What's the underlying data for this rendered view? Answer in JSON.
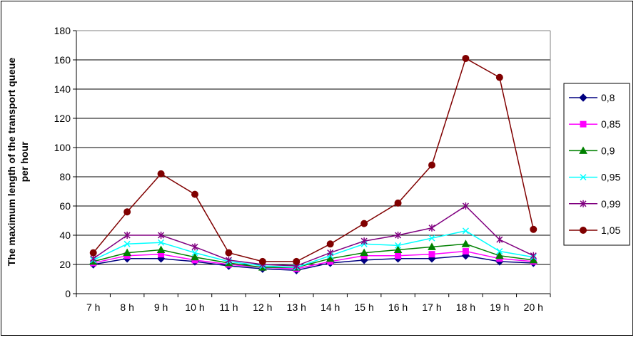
{
  "chart_data": {
    "type": "line",
    "title": "",
    "xlabel": "",
    "ylabel": "The maximum length of the transport queue per hour",
    "ylabel_lines": [
      "The maximum length of the transport queue",
      "per hour"
    ],
    "ylim": [
      0,
      180
    ],
    "yticks": [
      0,
      20,
      40,
      60,
      80,
      100,
      120,
      140,
      160,
      180
    ],
    "grid": "horizontal",
    "legend_position": "right",
    "categories": [
      "7 h",
      "8 h",
      "9 h",
      "10 h",
      "11 h",
      "12 h",
      "13 h",
      "14 h",
      "15 h",
      "16 h",
      "17 h",
      "18 h",
      "19 h",
      "20 h"
    ],
    "series": [
      {
        "name": "0,8",
        "color": "#000080",
        "marker": "diamond",
        "values": [
          20,
          24,
          24,
          22,
          19,
          17,
          16,
          21,
          23,
          24,
          24,
          26,
          22,
          21
        ]
      },
      {
        "name": "0,85",
        "color": "#ff00ff",
        "marker": "square",
        "values": [
          21,
          26,
          27,
          23,
          20,
          18,
          17,
          22,
          26,
          26,
          27,
          29,
          24,
          22
        ]
      },
      {
        "name": "0,9",
        "color": "#008000",
        "marker": "triangle",
        "values": [
          22,
          28,
          30,
          25,
          21,
          18,
          18,
          24,
          28,
          30,
          32,
          34,
          26,
          23
        ]
      },
      {
        "name": "0,95",
        "color": "#00ffff",
        "marker": "x",
        "values": [
          23,
          34,
          35,
          28,
          22,
          19,
          18,
          26,
          34,
          33,
          38,
          43,
          29,
          25
        ]
      },
      {
        "name": "0,99",
        "color": "#800080",
        "marker": "star",
        "values": [
          24,
          40,
          40,
          32,
          23,
          20,
          19,
          28,
          36,
          40,
          45,
          60,
          37,
          26
        ]
      },
      {
        "name": "1,05",
        "color": "#800000",
        "marker": "circle",
        "values": [
          28,
          56,
          82,
          68,
          28,
          22,
          22,
          34,
          48,
          62,
          88,
          161,
          148,
          44
        ]
      }
    ]
  }
}
